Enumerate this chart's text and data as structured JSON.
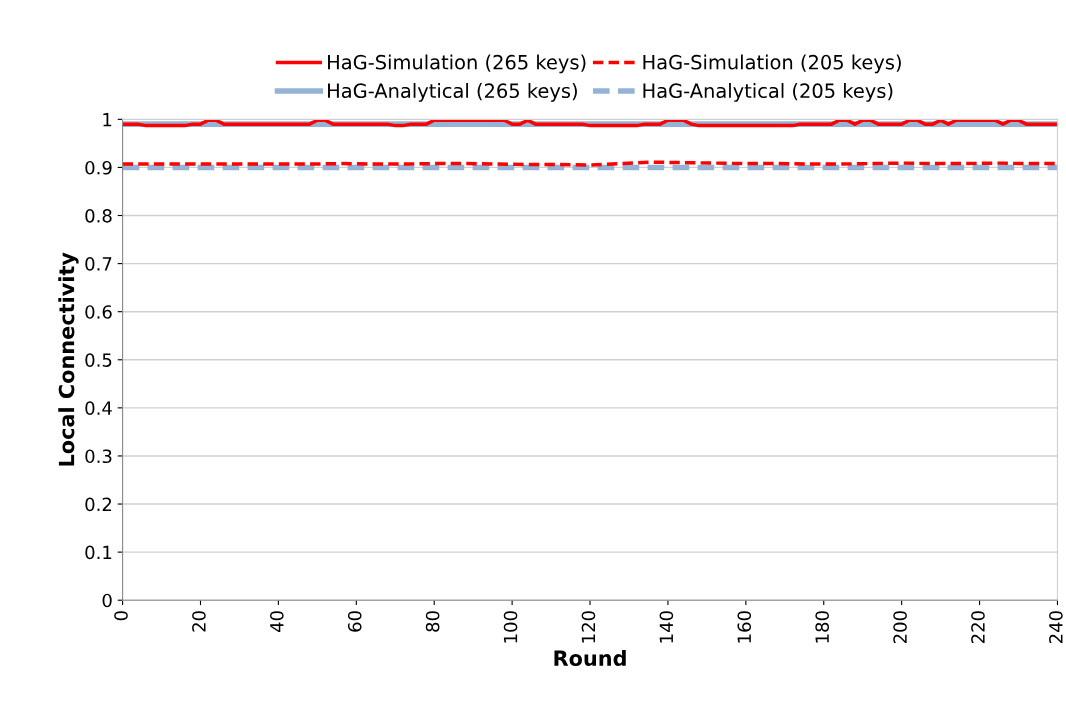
{
  "chart_data": {
    "type": "line",
    "xlabel": "Round",
    "ylabel": "Local Connectivity",
    "xlim": [
      0,
      240
    ],
    "xticks": [
      0,
      20,
      40,
      60,
      80,
      100,
      120,
      140,
      160,
      180,
      200,
      220,
      240
    ],
    "ylim": [
      0,
      1
    ],
    "yticks": [
      0,
      0.1,
      0.2,
      0.3,
      0.4,
      0.5,
      0.6,
      0.7,
      0.8,
      0.9,
      1
    ],
    "grid": "y",
    "legend": "top",
    "marker": "none",
    "series": [
      {
        "name": "HaG-Analytical (265 keys)",
        "color": "#95b3d7",
        "line_style": "solid",
        "x": [
          0,
          240
        ],
        "values": [
          0.99,
          0.99
        ]
      },
      {
        "name": "HaG-Analytical (205 keys)",
        "color": "#95b3d7",
        "line_style": "dashed",
        "x": [
          0,
          240
        ],
        "values": [
          0.9,
          0.9
        ]
      },
      {
        "name": "HaG-Simulation (265 keys)",
        "color": "#ff0000",
        "line_style": "solid",
        "x": [
          0,
          2,
          4,
          6,
          8,
          10,
          12,
          14,
          16,
          18,
          20,
          22,
          24,
          26,
          28,
          30,
          32,
          34,
          36,
          38,
          40,
          42,
          44,
          46,
          48,
          50,
          52,
          54,
          56,
          58,
          60,
          62,
          64,
          66,
          68,
          70,
          72,
          74,
          76,
          78,
          80,
          82,
          84,
          86,
          88,
          90,
          92,
          94,
          96,
          98,
          100,
          102,
          104,
          106,
          108,
          110,
          112,
          114,
          116,
          118,
          120,
          122,
          124,
          126,
          128,
          130,
          132,
          134,
          136,
          138,
          140,
          142,
          144,
          146,
          148,
          150,
          152,
          154,
          156,
          158,
          160,
          162,
          164,
          166,
          168,
          170,
          172,
          174,
          176,
          178,
          180,
          182,
          184,
          186,
          188,
          190,
          192,
          194,
          196,
          198,
          200,
          202,
          204,
          206,
          208,
          210,
          212,
          214,
          216,
          218,
          220,
          222,
          224,
          226,
          228,
          230,
          232,
          234,
          236,
          238,
          240
        ],
        "values": [
          0.99,
          0.99,
          0.99,
          0.987,
          0.987,
          0.987,
          0.987,
          0.987,
          0.987,
          0.99,
          0.99,
          0.998,
          0.998,
          0.99,
          0.99,
          0.99,
          0.99,
          0.99,
          0.99,
          0.99,
          0.99,
          0.99,
          0.99,
          0.99,
          0.99,
          0.998,
          0.998,
          0.99,
          0.99,
          0.99,
          0.99,
          0.99,
          0.99,
          0.99,
          0.99,
          0.987,
          0.987,
          0.99,
          0.99,
          0.99,
          0.998,
          0.998,
          0.998,
          0.998,
          0.998,
          0.998,
          0.998,
          0.998,
          0.998,
          0.998,
          0.99,
          0.99,
          0.998,
          0.99,
          0.99,
          0.99,
          0.99,
          0.99,
          0.99,
          0.99,
          0.987,
          0.987,
          0.987,
          0.987,
          0.987,
          0.987,
          0.987,
          0.99,
          0.99,
          0.99,
          0.998,
          0.998,
          0.998,
          0.99,
          0.987,
          0.987,
          0.987,
          0.987,
          0.987,
          0.987,
          0.987,
          0.987,
          0.987,
          0.987,
          0.987,
          0.987,
          0.987,
          0.99,
          0.99,
          0.99,
          0.99,
          0.99,
          0.998,
          0.998,
          0.99,
          0.998,
          0.998,
          0.99,
          0.99,
          0.99,
          0.99,
          0.998,
          0.998,
          0.99,
          0.99,
          0.998,
          0.99,
          0.998,
          0.998,
          0.998,
          0.998,
          0.998,
          0.998,
          0.99,
          0.998,
          0.998,
          0.99,
          0.99,
          0.99,
          0.99,
          0.99
        ]
      },
      {
        "name": "HaG-Simulation (205 keys)",
        "color": "#ff0000",
        "line_style": "dashed",
        "x": [
          0,
          8,
          16,
          24,
          32,
          40,
          48,
          56,
          64,
          72,
          80,
          88,
          96,
          104,
          112,
          120,
          128,
          136,
          144,
          152,
          160,
          168,
          176,
          184,
          192,
          200,
          208,
          216,
          224,
          232,
          240
        ],
        "values": [
          0.907,
          0.907,
          0.907,
          0.907,
          0.907,
          0.907,
          0.907,
          0.908,
          0.907,
          0.907,
          0.908,
          0.908,
          0.907,
          0.906,
          0.906,
          0.905,
          0.908,
          0.911,
          0.91,
          0.909,
          0.908,
          0.908,
          0.907,
          0.907,
          0.908,
          0.909,
          0.908,
          0.908,
          0.909,
          0.908,
          0.908
        ]
      }
    ]
  }
}
